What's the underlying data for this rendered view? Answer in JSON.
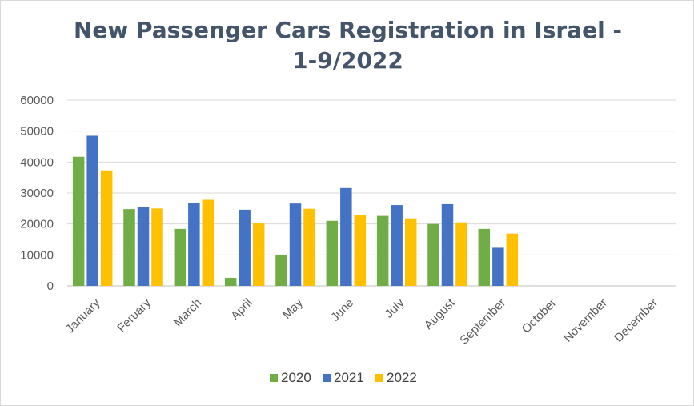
{
  "chart_data": {
    "type": "bar",
    "title_line1": "New Passenger Cars Registration in Israel -",
    "title_line2": "1-9/2022",
    "categories": [
      "January",
      "Feruary",
      "March",
      "April",
      "May",
      "June",
      "July",
      "August",
      "September",
      "October",
      "November",
      "December"
    ],
    "series": [
      {
        "name": "2020",
        "color": "#70ad47",
        "values": [
          41700,
          24800,
          18400,
          2600,
          10100,
          21000,
          22600,
          20000,
          18400,
          null,
          null,
          null
        ]
      },
      {
        "name": "2021",
        "color": "#4472c4",
        "values": [
          48500,
          25400,
          26700,
          24600,
          26600,
          31600,
          26100,
          26400,
          12300,
          null,
          null,
          null
        ]
      },
      {
        "name": "2022",
        "color": "#ffc000",
        "values": [
          37300,
          25000,
          27800,
          20200,
          24900,
          22800,
          21800,
          20500,
          16900,
          null,
          null,
          null
        ]
      }
    ],
    "ylim": [
      0,
      60000
    ],
    "yticks": [
      "0",
      "10000",
      "20000",
      "30000",
      "40000",
      "50000",
      "60000"
    ],
    "grid": true,
    "legend_position": "bottom"
  }
}
